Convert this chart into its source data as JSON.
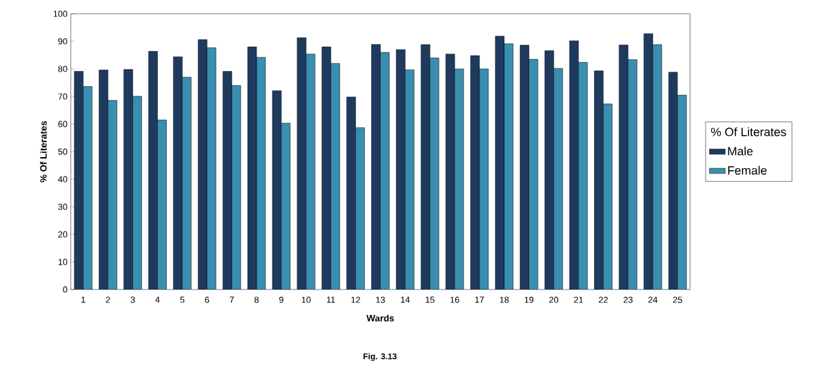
{
  "chart_data": {
    "type": "bar",
    "xlabel": "Wards",
    "ylabel": "% Of Literates",
    "legend_title": "% Of Literates",
    "categories": [
      "1",
      "2",
      "3",
      "4",
      "5",
      "6",
      "7",
      "8",
      "9",
      "10",
      "11",
      "12",
      "13",
      "14",
      "15",
      "16",
      "17",
      "18",
      "19",
      "20",
      "21",
      "22",
      "23",
      "24",
      "25"
    ],
    "series": [
      {
        "name": "Male",
        "color": "#1f3a5f",
        "values": [
          79.1,
          79.6,
          79.8,
          86.4,
          84.4,
          90.6,
          79.1,
          88.0,
          72.1,
          91.3,
          88.0,
          69.8,
          88.9,
          87.0,
          88.8,
          85.4,
          84.8,
          91.9,
          88.6,
          86.6,
          90.2,
          79.3,
          88.7,
          92.8,
          78.8
        ]
      },
      {
        "name": "Female",
        "color": "#3a8fb0",
        "values": [
          73.6,
          68.6,
          70.1,
          61.5,
          77.0,
          87.7,
          74.0,
          84.2,
          60.3,
          85.4,
          82.0,
          58.7,
          86.0,
          79.7,
          84.0,
          80.0,
          80.0,
          89.1,
          83.5,
          80.2,
          82.4,
          67.3,
          83.4,
          88.8,
          70.5
        ]
      }
    ],
    "ylim": [
      0,
      100
    ],
    "yticks": [
      0,
      10,
      20,
      30,
      40,
      50,
      60,
      70,
      80,
      90,
      100
    ],
    "legend": "right",
    "annotations": [
      "Fig. 3.13"
    ]
  }
}
